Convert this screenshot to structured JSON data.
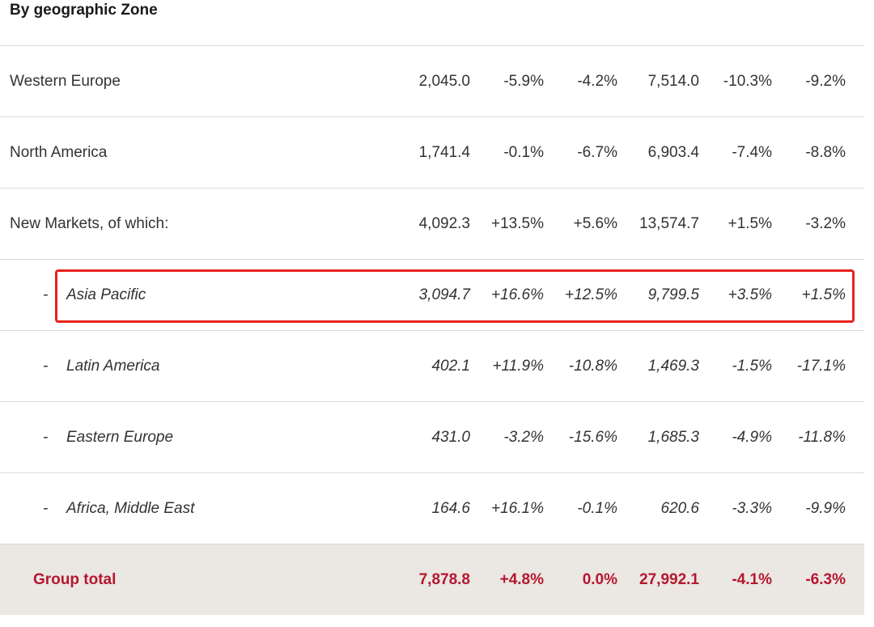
{
  "title": "By geographic Zone",
  "rows": [
    {
      "label": "Western Europe",
      "values": [
        "2,045.0",
        "-5.9%",
        "-4.2%",
        "7,514.0",
        "-10.3%",
        "-9.2%"
      ]
    },
    {
      "label": "North America",
      "values": [
        "1,741.4",
        "-0.1%",
        "-6.7%",
        "6,903.4",
        "-7.4%",
        "-8.8%"
      ]
    },
    {
      "label": "New Markets, of which:",
      "values": [
        "4,092.3",
        "+13.5%",
        "+5.6%",
        "13,574.7",
        "+1.5%",
        "-3.2%"
      ]
    },
    {
      "dash": "-",
      "label": "Asia Pacific",
      "values": [
        "3,094.7",
        "+16.6%",
        "+12.5%",
        "9,799.5",
        "+3.5%",
        "+1.5%"
      ]
    },
    {
      "dash": "-",
      "label": "Latin America",
      "values": [
        "402.1",
        "+11.9%",
        "-10.8%",
        "1,469.3",
        "-1.5%",
        "-17.1%"
      ]
    },
    {
      "dash": "-",
      "label": "Eastern Europe",
      "values": [
        "431.0",
        "-3.2%",
        "-15.6%",
        "1,685.3",
        "-4.9%",
        "-11.8%"
      ]
    },
    {
      "dash": "-",
      "label": "Africa, Middle East",
      "values": [
        "164.6",
        "+16.1%",
        "-0.1%",
        "620.6",
        "-3.3%",
        "-9.9%"
      ]
    }
  ],
  "total": {
    "label": "Group total",
    "values": [
      "7,878.8",
      "+4.8%",
      "0.0%",
      "27,992.1",
      "-4.1%",
      "-6.3%"
    ]
  },
  "colors": {
    "total_text": "#b5172f",
    "total_background": "#ebe7e3",
    "highlight_border": "#e8231e"
  }
}
